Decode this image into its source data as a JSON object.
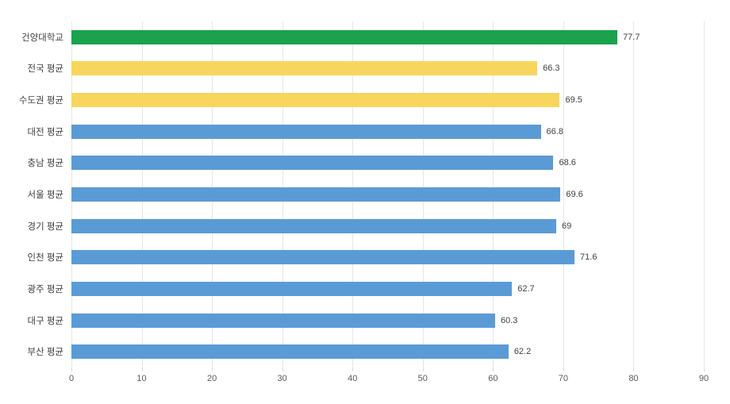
{
  "chart_data": {
    "type": "bar",
    "orientation": "horizontal",
    "title": "",
    "xlabel": "",
    "ylabel": "",
    "categories": [
      "건양대학교",
      "전국 평균",
      "수도권 평균",
      "대전 평균",
      "충남 평균",
      "서울 평균",
      "경기 평균",
      "인천 평균",
      "광주 평균",
      "대구 평균",
      "부산 평균"
    ],
    "values": [
      77.7,
      66.3,
      69.5,
      66.8,
      68.6,
      69.6,
      69,
      71.6,
      62.7,
      60.3,
      62.2
    ],
    "value_labels": [
      "77.7",
      "66.3",
      "69.5",
      "66.8",
      "68.6",
      "69.6",
      "69",
      "71.6",
      "62.7",
      "60.3",
      "62.2"
    ],
    "bar_colors": [
      "#1aa24d",
      "#f8d65d",
      "#f8d65d",
      "#5b9bd5",
      "#5b9bd5",
      "#5b9bd5",
      "#5b9bd5",
      "#5b9bd5",
      "#5b9bd5",
      "#5b9bd5",
      "#5b9bd5"
    ],
    "xlim": [
      0,
      90
    ],
    "x_ticks": [
      0,
      10,
      20,
      30,
      40,
      50,
      60,
      70,
      80,
      90
    ],
    "grid": "vertical",
    "legend": "none"
  },
  "colors": {
    "highlight_green": "#1aa24d",
    "highlight_yellow": "#f8d65d",
    "default_blue": "#5b9bd5",
    "gridline": "#e6e6e6",
    "tick": "#d9d9d9",
    "category_text": "#404040",
    "value_text": "#404040",
    "axis_text": "#595959",
    "background": "#ffffff"
  }
}
